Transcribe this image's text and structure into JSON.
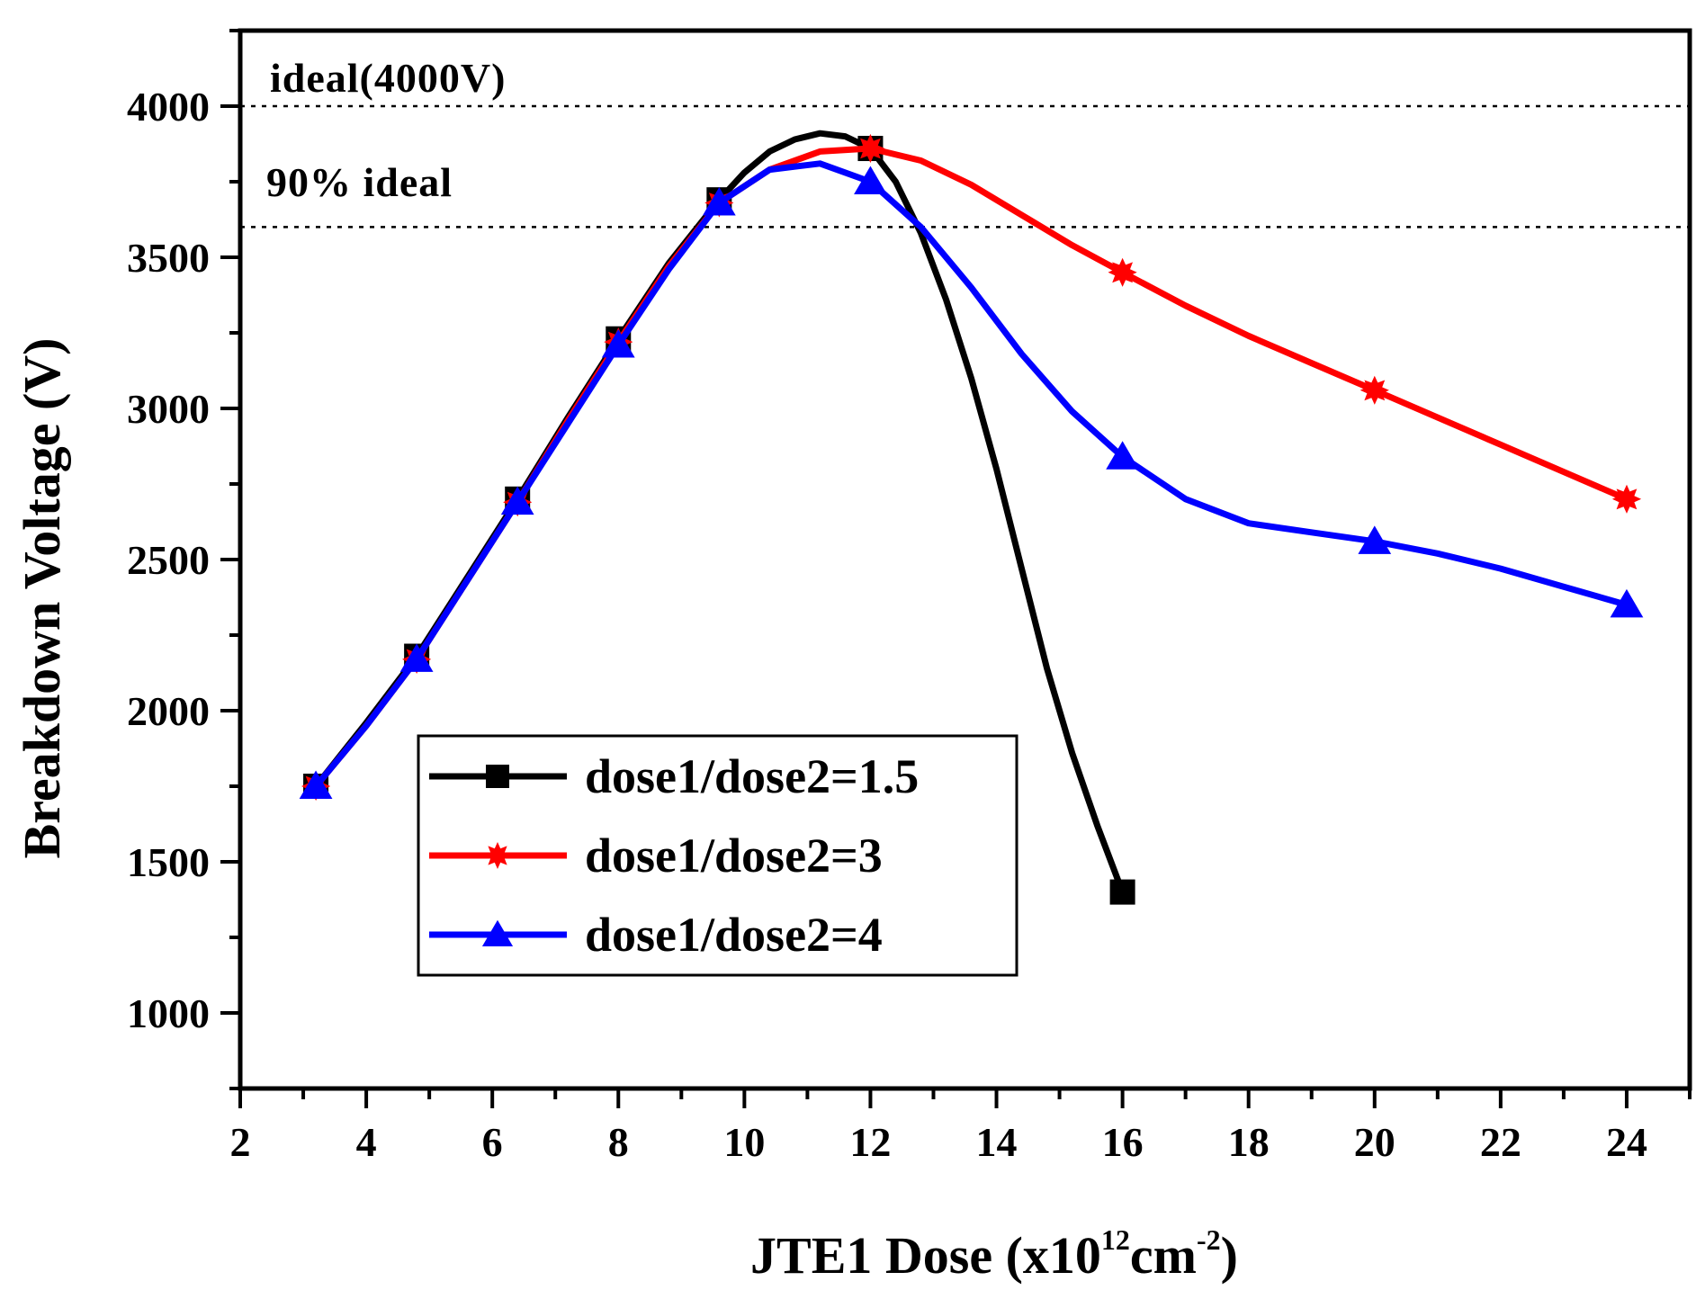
{
  "chart_data": {
    "type": "line",
    "title": "",
    "xlabel": {
      "main": "JTE1 Dose (x10",
      "sup1": "12",
      "mid": "cm",
      "sup2": "-2",
      "end": ")"
    },
    "ylabel": "Breakdown Voltage (V)",
    "xlim": [
      2,
      25
    ],
    "ylim": [
      750,
      4250
    ],
    "xticks": [
      2,
      4,
      6,
      8,
      10,
      12,
      14,
      16,
      18,
      20,
      22,
      24
    ],
    "yticks": [
      1000,
      1500,
      2000,
      2500,
      3000,
      3500,
      4000
    ],
    "grid": false,
    "legend_position": "center-left",
    "reference_lines": [
      {
        "label": "ideal(4000V)",
        "y": 4000,
        "style": "dotted"
      },
      {
        "label": "90% ideal",
        "y": 3600,
        "style": "dotted"
      }
    ],
    "series": [
      {
        "name": "dose1/dose2=1.5",
        "color": "#000000",
        "marker": "square",
        "x": [
          3.2,
          4.8,
          6.4,
          8.0,
          9.6,
          12.0,
          16.0
        ],
        "values": [
          1750,
          2180,
          2700,
          3230,
          3690,
          3860,
          1400
        ],
        "curve_x": [
          3.2,
          4.0,
          4.8,
          5.6,
          6.4,
          7.2,
          8.0,
          8.8,
          9.6,
          10.0,
          10.4,
          10.8,
          11.2,
          11.6,
          12.0,
          12.4,
          12.8,
          13.2,
          13.6,
          14.0,
          14.4,
          14.8,
          15.2,
          15.6,
          16.0
        ],
        "curve_y": [
          1750,
          1960,
          2180,
          2440,
          2700,
          2970,
          3230,
          3480,
          3690,
          3780,
          3850,
          3890,
          3910,
          3900,
          3860,
          3750,
          3580,
          3360,
          3100,
          2800,
          2470,
          2140,
          1860,
          1620,
          1400
        ]
      },
      {
        "name": "dose1/dose2=3",
        "color": "#ff0000",
        "marker": "star",
        "x": [
          3.2,
          4.8,
          6.4,
          8.0,
          9.6,
          12.0,
          16.0,
          20.0,
          24.0
        ],
        "values": [
          1750,
          2170,
          2690,
          3220,
          3680,
          3860,
          3450,
          3060,
          2700
        ],
        "curve_x": [
          3.2,
          4.0,
          4.8,
          5.6,
          6.4,
          7.2,
          8.0,
          8.8,
          9.6,
          10.4,
          11.2,
          12.0,
          12.8,
          13.6,
          14.4,
          15.2,
          16.0,
          17.0,
          18.0,
          19.0,
          20.0,
          21.0,
          22.0,
          23.0,
          24.0
        ],
        "curve_y": [
          1750,
          1950,
          2170,
          2430,
          2690,
          2960,
          3220,
          3470,
          3680,
          3790,
          3850,
          3860,
          3820,
          3740,
          3640,
          3540,
          3450,
          3340,
          3240,
          3150,
          3060,
          2970,
          2880,
          2790,
          2700
        ]
      },
      {
        "name": "dose1/dose2=4",
        "color": "#0000ff",
        "marker": "triangle",
        "x": [
          3.2,
          4.8,
          6.4,
          8.0,
          9.6,
          12.0,
          16.0,
          20.0,
          24.0
        ],
        "values": [
          1750,
          2170,
          2690,
          3210,
          3680,
          3750,
          2840,
          2560,
          2350
        ],
        "curve_x": [
          3.2,
          4.0,
          4.8,
          5.6,
          6.4,
          7.2,
          8.0,
          8.8,
          9.6,
          10.4,
          11.2,
          12.0,
          12.8,
          13.6,
          14.4,
          15.2,
          16.0,
          17.0,
          18.0,
          19.0,
          20.0,
          21.0,
          22.0,
          23.0,
          24.0
        ],
        "curve_y": [
          1750,
          1950,
          2170,
          2430,
          2690,
          2950,
          3210,
          3460,
          3680,
          3790,
          3810,
          3750,
          3600,
          3400,
          3180,
          2990,
          2840,
          2700,
          2620,
          2590,
          2560,
          2520,
          2470,
          2410,
          2350
        ]
      }
    ]
  }
}
